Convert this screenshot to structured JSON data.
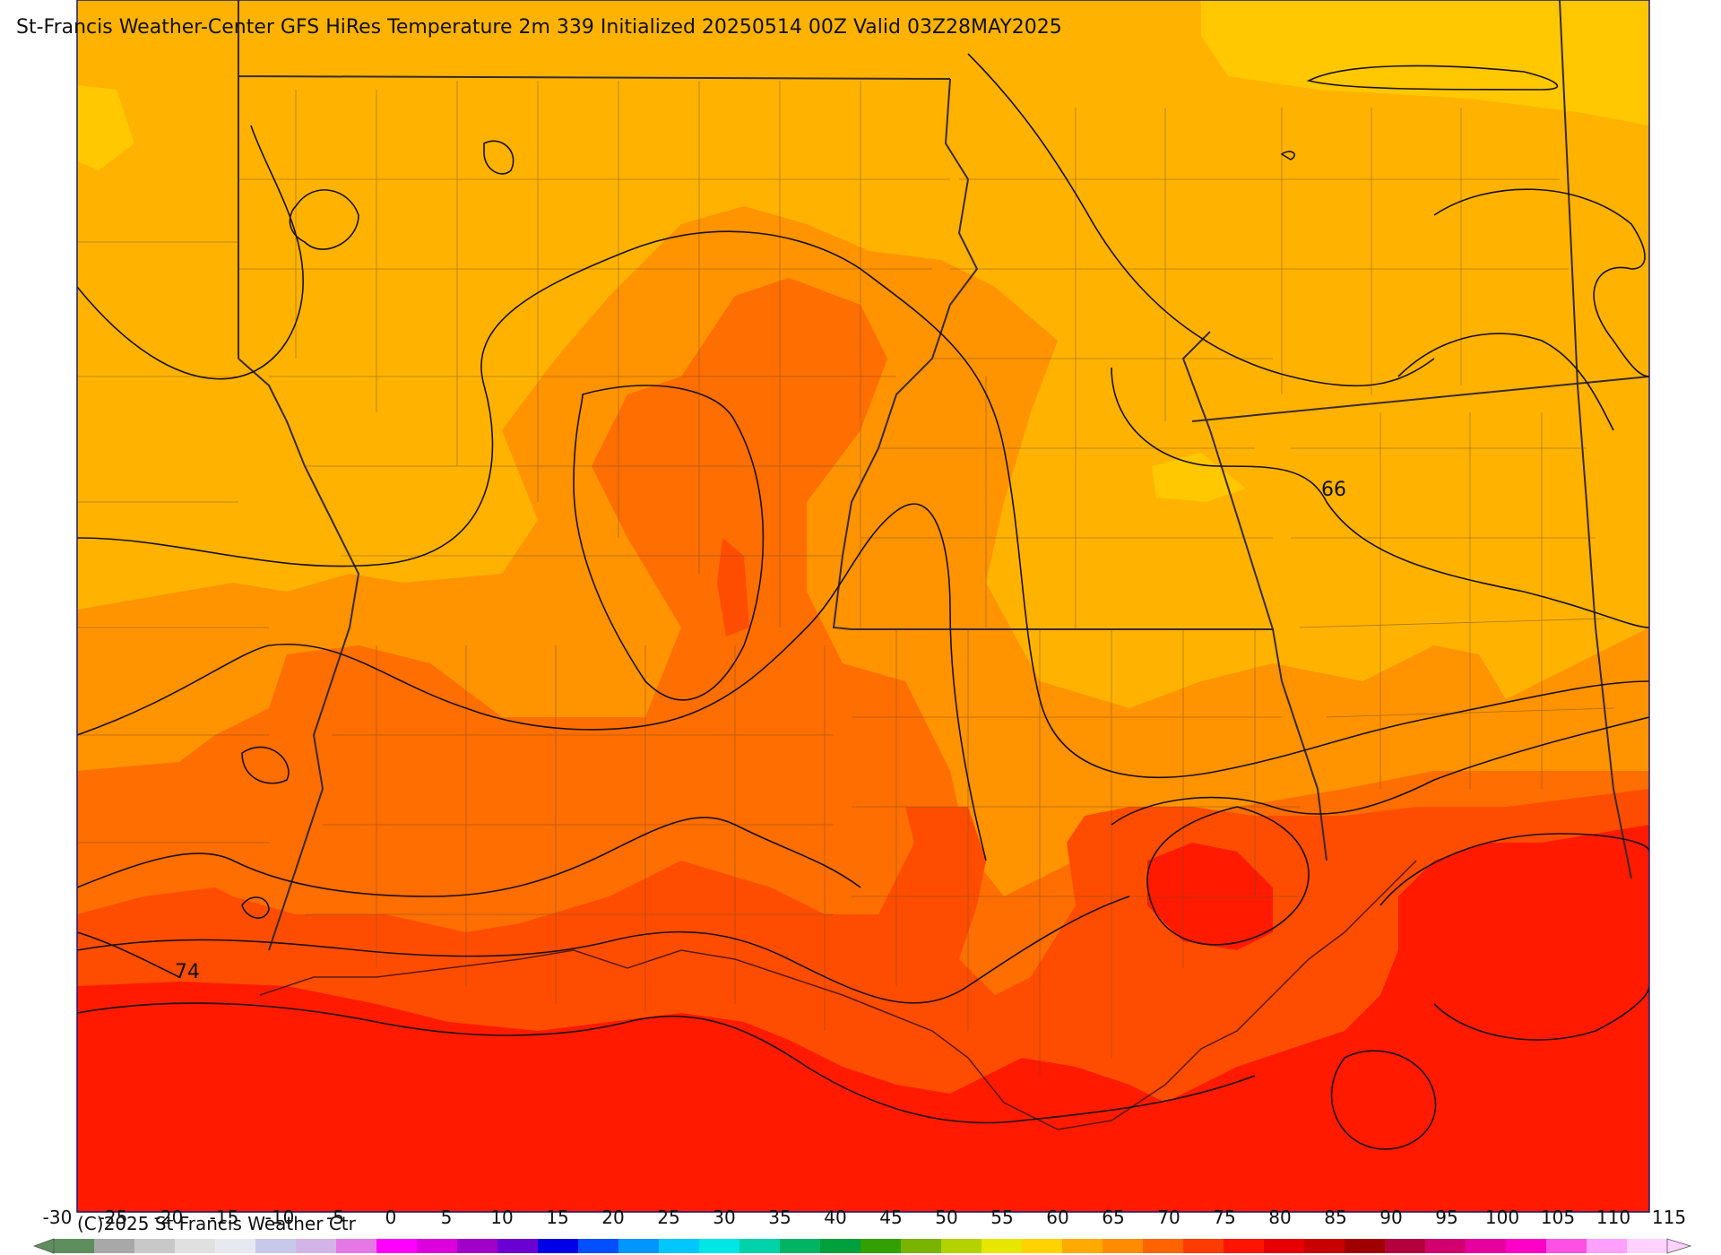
{
  "title": "St-Francis Weather-Center GFS HiRes Temperature 2m  339 Initialized 20250514 00Z Valid 03Z28MAY2025",
  "copyright": "(C)2025 St Francis Weather Ctr",
  "contour_labels": [
    "66",
    "74"
  ],
  "colorbar": {
    "ticks": [
      "-30",
      "-25",
      "-20",
      "-15",
      "-10",
      "-5",
      "0",
      "5",
      "10",
      "15",
      "20",
      "25",
      "30",
      "35",
      "40",
      "45",
      "50",
      "55",
      "60",
      "65",
      "70",
      "75",
      "80",
      "85",
      "90",
      "95",
      "100",
      "105",
      "110",
      "115"
    ],
    "colors": [
      "#5e8e5e",
      "#a8a8a8",
      "#c8c8c8",
      "#e0e0e0",
      "#e8e8f0",
      "#c8c8e8",
      "#d2b4e6",
      "#e678e6",
      "#ff00ff",
      "#dc00dc",
      "#a000c8",
      "#6a00d2",
      "#0000e6",
      "#0050ff",
      "#0096ff",
      "#00c8ff",
      "#00e6e6",
      "#00d2aa",
      "#00b464",
      "#00a03c",
      "#32a000",
      "#78b400",
      "#b4d200",
      "#e6e600",
      "#ffd200",
      "#ffaa00",
      "#ff8c00",
      "#ff6400",
      "#ff3c00",
      "#ff1400",
      "#e60000",
      "#c80000",
      "#a00000",
      "#b4003c",
      "#d2006e",
      "#e600a0",
      "#ff00c8",
      "#ff50e6",
      "#ffa0ff",
      "#ffd2ff"
    ]
  },
  "map_fill_colors": {
    "t60": "#ffc800",
    "t65": "#ffb300",
    "t70": "#ff9300",
    "t75": "#ff6e00",
    "t80": "#ff4d00",
    "t85": "#ff1a00"
  }
}
